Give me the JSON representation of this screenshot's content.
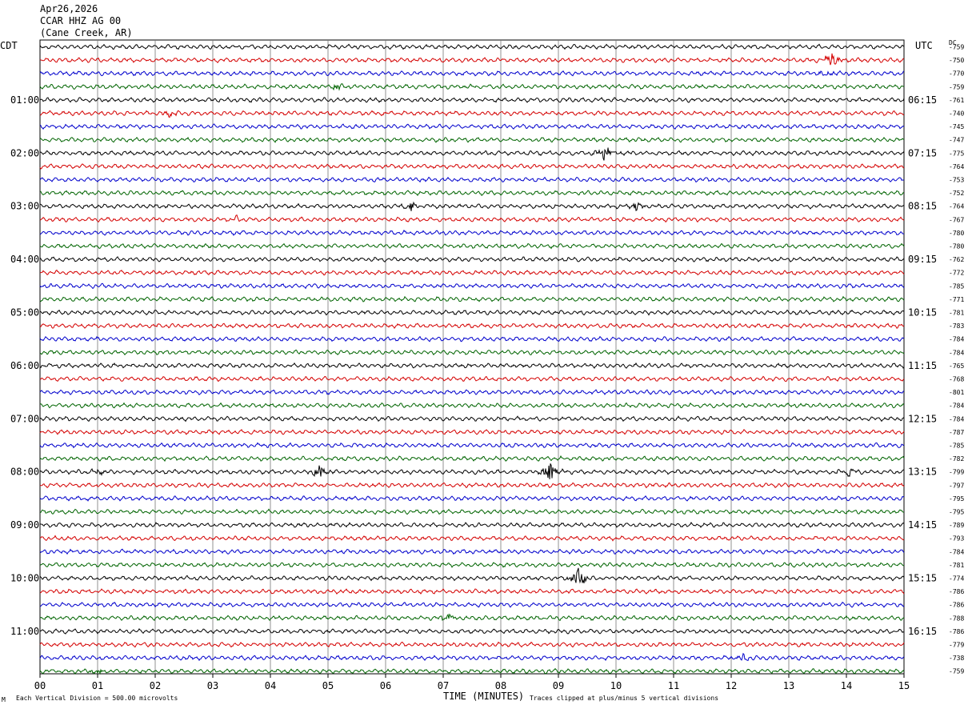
{
  "header": {
    "date": "Apr26,2026",
    "station": "CCAR HHZ AG 00",
    "location": "(Cane Creek, AR)"
  },
  "labels": {
    "left_zone": "CDT",
    "right_zone": "UTC",
    "dc": "DC",
    "xlabel": "TIME (MINUTES)",
    "scale_note": "Each Vertical Division =  500.00 microvolts",
    "clip_note": "Traces clipped at plus/minus 5 vertical divisions",
    "corner_mark": "M"
  },
  "chart_data": {
    "type": "line",
    "title": "CCAR HHZ AG 00 (Cane Creek, AR) Apr26,2026",
    "xlabel": "TIME (MINUTES)",
    "xlim": [
      0,
      15
    ],
    "x_ticks": [
      "00",
      "01",
      "02",
      "03",
      "04",
      "05",
      "06",
      "07",
      "08",
      "09",
      "10",
      "11",
      "12",
      "13",
      "14",
      "15"
    ],
    "grid": true,
    "trace_colors": [
      "#000000",
      "#d40000",
      "#0000cc",
      "#006400"
    ],
    "left_hour_labels": [
      "01:00",
      "02:00",
      "03:00",
      "04:00",
      "05:00",
      "06:00",
      "07:00",
      "08:00",
      "09:00",
      "10:00",
      "11:00"
    ],
    "right_hour_labels": [
      "06:15",
      "07:15",
      "08:15",
      "09:15",
      "10:15",
      "11:15",
      "12:15",
      "13:15",
      "14:15",
      "15:15",
      "16:15"
    ],
    "dc_offsets": [
      -759,
      -750,
      -770,
      -759,
      -761,
      -740,
      -745,
      -747,
      -775,
      -764,
      -753,
      -752,
      -764,
      -767,
      -780,
      -780,
      -762,
      -772,
      -785,
      -771,
      -781,
      -783,
      -784,
      -784,
      -765,
      -768,
      -801,
      -784,
      -784,
      -787,
      -785,
      -782,
      -799,
      -797,
      -795,
      -795,
      -789,
      -793,
      -784,
      -781,
      -774,
      -786,
      -786,
      -788,
      -786,
      -779,
      -738,
      -759
    ],
    "events": [
      {
        "row": 1,
        "minute": 13.75,
        "amp": 10
      },
      {
        "row": 2,
        "minute": 13.65,
        "amp": 5
      },
      {
        "row": 3,
        "minute": 5.15,
        "amp": 4
      },
      {
        "row": 5,
        "minute": 2.25,
        "amp": 4
      },
      {
        "row": 8,
        "minute": 9.8,
        "amp": 11
      },
      {
        "row": 12,
        "minute": 6.45,
        "amp": 6
      },
      {
        "row": 12,
        "minute": 10.35,
        "amp": 6
      },
      {
        "row": 13,
        "minute": 3.4,
        "amp": 4
      },
      {
        "row": 32,
        "minute": 0.95,
        "amp": 5
      },
      {
        "row": 32,
        "minute": 4.85,
        "amp": 9
      },
      {
        "row": 32,
        "minute": 8.85,
        "amp": 14
      },
      {
        "row": 32,
        "minute": 14.05,
        "amp": 7
      },
      {
        "row": 40,
        "minute": 9.35,
        "amp": 14
      },
      {
        "row": 43,
        "minute": 7.1,
        "amp": 6
      },
      {
        "row": 46,
        "minute": 12.2,
        "amp": 5
      },
      {
        "row": 47,
        "minute": 1.0,
        "amp": 5
      }
    ]
  }
}
